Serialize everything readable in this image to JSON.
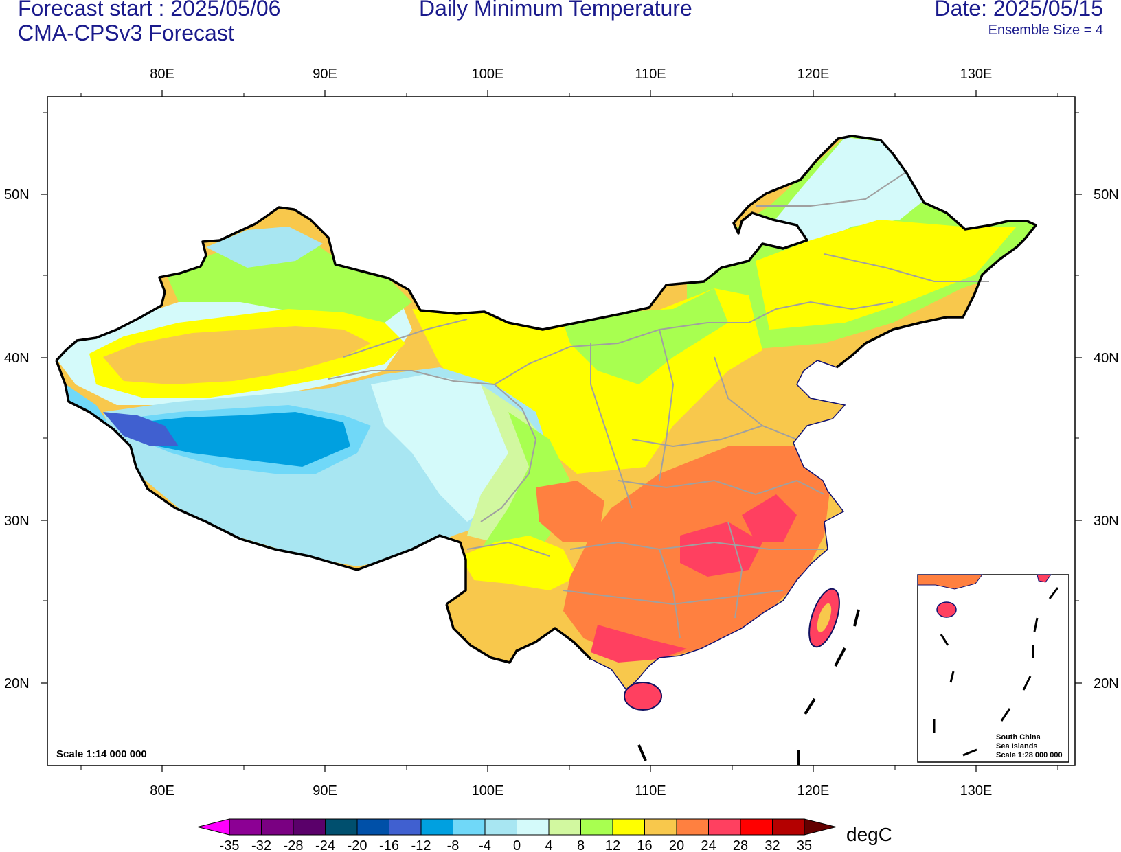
{
  "header": {
    "forecast_start": "Forecast start : 2025/05/06",
    "model": "CMA-CPSv3 Forecast",
    "title": "Daily Minimum Temperature",
    "date": "Date: 2025/05/15",
    "ensemble": "Ensemble Size = 4"
  },
  "axes": {
    "lon_labels": [
      "80E",
      "90E",
      "100E",
      "110E",
      "120E",
      "130E"
    ],
    "lat_labels": [
      "50N",
      "40N",
      "30N",
      "20N"
    ]
  },
  "map": {
    "scale_label": "Scale 1:14 000 000",
    "inset_lines": [
      "South China",
      "Sea Islands",
      "Scale 1:28 000 000"
    ]
  },
  "colorbar": {
    "unit": "degC",
    "ticks": [
      "-35",
      "-32",
      "-28",
      "-24",
      "-20",
      "-16",
      "-12",
      "-8",
      "-4",
      "0",
      "4",
      "8",
      "12",
      "16",
      "20",
      "24",
      "28",
      "32",
      "35"
    ],
    "colors": [
      "#8c0094",
      "#7a0082",
      "#5a006a",
      "#004f6e",
      "#0050a8",
      "#4060d0",
      "#00a0e0",
      "#70d8f8",
      "#a8e6f2",
      "#d4fafa",
      "#d2f8a0",
      "#a8ff50",
      "#ffff00",
      "#f8c84c",
      "#ff8040",
      "#ff4060",
      "#ff0000",
      "#b40000"
    ],
    "end_low_color": "#ff00ff",
    "end_high_color": "#640000"
  }
}
